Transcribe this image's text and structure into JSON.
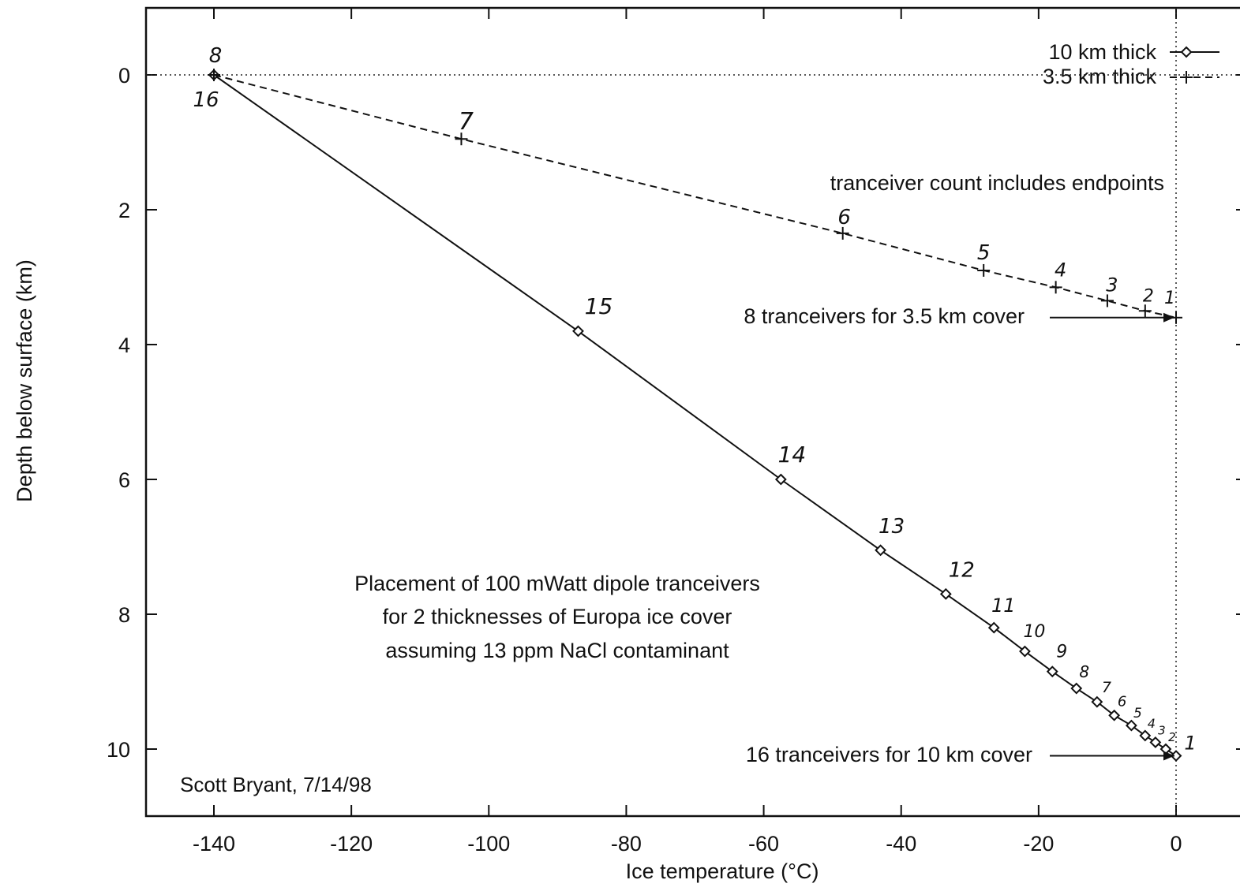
{
  "chart_data": {
    "type": "line",
    "title": "",
    "xlabel": "Ice temperature (°C)",
    "ylabel": "Depth below surface (km)",
    "xlim": [
      -150,
      0
    ],
    "ylim": [
      11,
      -1
    ],
    "y_inverted": true,
    "grid": false,
    "legend_position": "top-right",
    "x_ticks": [
      -140,
      -120,
      -100,
      -80,
      -60,
      -40,
      -20,
      0
    ],
    "y_ticks": [
      0,
      2,
      4,
      6,
      8,
      10
    ],
    "series": [
      {
        "name": "10 km thick",
        "marker": "diamond",
        "line": "solid",
        "points": [
          {
            "x": -140,
            "y": 0,
            "label": "16"
          },
          {
            "x": -87,
            "y": 3.8,
            "label": "15"
          },
          {
            "x": -57.5,
            "y": 6.0,
            "label": "14"
          },
          {
            "x": -43,
            "y": 7.05,
            "label": "13"
          },
          {
            "x": -33.5,
            "y": 7.7,
            "label": "12"
          },
          {
            "x": -26.5,
            "y": 8.2,
            "label": "11"
          },
          {
            "x": -22,
            "y": 8.55,
            "label": "10"
          },
          {
            "x": -18,
            "y": 8.85,
            "label": "9"
          },
          {
            "x": -14.5,
            "y": 9.1,
            "label": "8"
          },
          {
            "x": -11.5,
            "y": 9.3,
            "label": "7"
          },
          {
            "x": -9,
            "y": 9.5,
            "label": "6"
          },
          {
            "x": -6.5,
            "y": 9.65,
            "label": "5"
          },
          {
            "x": -4.5,
            "y": 9.8,
            "label": "4"
          },
          {
            "x": -3,
            "y": 9.9,
            "label": "3"
          },
          {
            "x": -1.5,
            "y": 10.0,
            "label": "2"
          },
          {
            "x": 0,
            "y": 10.1,
            "label": "1"
          }
        ]
      },
      {
        "name": "3.5 km thick",
        "marker": "plus",
        "line": "dashed",
        "points": [
          {
            "x": -140,
            "y": 0,
            "label": "8"
          },
          {
            "x": -104,
            "y": 0.95,
            "label": "7"
          },
          {
            "x": -48.5,
            "y": 2.35,
            "label": "6"
          },
          {
            "x": -28,
            "y": 2.9,
            "label": "5"
          },
          {
            "x": -17.5,
            "y": 3.15,
            "label": "4"
          },
          {
            "x": -10,
            "y": 3.35,
            "label": "3"
          },
          {
            "x": -4.5,
            "y": 3.5,
            "label": "2"
          },
          {
            "x": 0,
            "y": 3.6,
            "label": "1"
          }
        ]
      }
    ],
    "annotations": {
      "count_note": "tranceiver count includes endpoints",
      "arrow_3_5": "8 tranceivers for 3.5 km cover",
      "arrow_10": "16 tranceivers for 10 km cover",
      "desc_line1": "Placement of 100 mWatt dipole tranceivers",
      "desc_line2": "for 2 thicknesses of Europa ice cover",
      "desc_line3": "assuming 13 ppm NaCl contaminant",
      "author": "Scott Bryant, 7/14/98"
    }
  }
}
